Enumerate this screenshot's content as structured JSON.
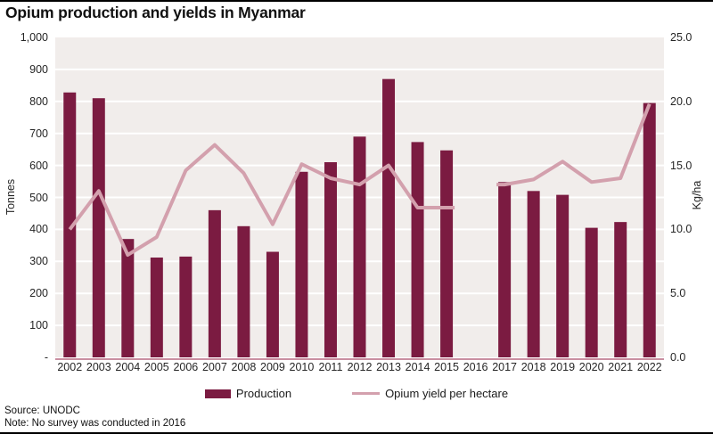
{
  "title": "Opium production and yields in Myanmar",
  "chart_data": {
    "type": "bar+line",
    "categories": [
      "2002",
      "2003",
      "2004",
      "2005",
      "2006",
      "2007",
      "2008",
      "2009",
      "2010",
      "2011",
      "2012",
      "2013",
      "2014",
      "2015",
      "2016",
      "2017",
      "2018",
      "2019",
      "2020",
      "2021",
      "2022"
    ],
    "series": [
      {
        "name": "Production",
        "type": "bar",
        "axis": "left",
        "values": [
          828,
          810,
          370,
          312,
          315,
          460,
          410,
          330,
          580,
          610,
          690,
          870,
          673,
          647,
          null,
          548,
          520,
          508,
          405,
          423,
          795
        ]
      },
      {
        "name": "Opium yield per hectare",
        "type": "line",
        "axis": "right",
        "values": [
          10.0,
          13.0,
          8.0,
          9.4,
          14.6,
          16.6,
          14.4,
          10.4,
          15.1,
          14.0,
          13.5,
          15.0,
          11.7,
          11.7,
          null,
          13.5,
          13.9,
          15.3,
          13.7,
          14.0,
          19.8
        ]
      }
    ],
    "left_axis": {
      "label": "Tonnes",
      "min": 0,
      "max": 1000,
      "ticks": [
        "1,000",
        "900",
        "800",
        "700",
        "600",
        "500",
        "400",
        "300",
        "200",
        "100",
        "-"
      ]
    },
    "right_axis": {
      "label": "Kg/ha",
      "min": 0,
      "max": 25,
      "ticks": [
        "25.0",
        "20.0",
        "15.0",
        "10.0",
        "5.0",
        "0.0"
      ]
    },
    "grid": true,
    "legend_position": "bottom",
    "gap_note_year": "2016"
  },
  "colors": {
    "bar": "#7b1b41",
    "line": "#d3a0ad",
    "axis_line": "#c98fa1",
    "plot_bg": "#f1edeb",
    "gridline": "#ffffff"
  },
  "legend": {
    "items": [
      {
        "label": "Production"
      },
      {
        "label": "Opium yield per hectare"
      }
    ]
  },
  "footer": {
    "source": "Source: UNODC",
    "note": "Note: No survey was conducted in 2016"
  }
}
